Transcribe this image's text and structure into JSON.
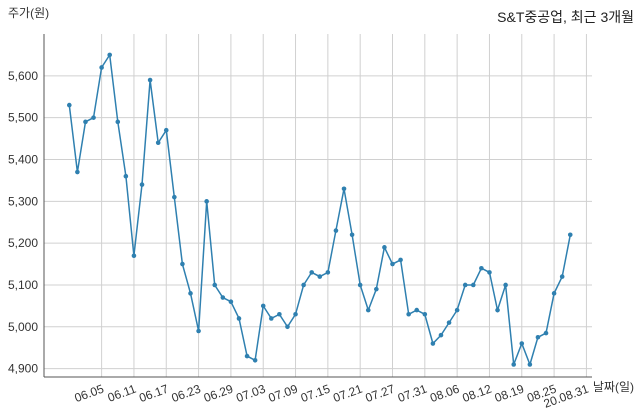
{
  "chart_data": {
    "type": "line",
    "title": "S&T중공업, 최근 3개월",
    "ylabel": "주가(원)",
    "xlabel": "날짜(일)",
    "ylim": [
      4880,
      5700
    ],
    "yticks": [
      4900,
      5000,
      5100,
      5200,
      5300,
      5400,
      5500,
      5600
    ],
    "ytick_labels": [
      "4,900",
      "5,000",
      "5,100",
      "5,200",
      "5,300",
      "5,400",
      "5,500",
      "5,600"
    ],
    "xtick_labels": [
      "06.05",
      "06.11",
      "06.17",
      "06.23",
      "06.29",
      "07.03",
      "07.09",
      "07.15",
      "07.21",
      "07.27",
      "07.31",
      "08.06",
      "08.12",
      "08.19",
      "08.25",
      "20.08.31"
    ],
    "xtick_index": [
      4,
      8,
      12,
      16,
      20,
      24,
      28,
      32,
      36,
      40,
      44,
      48,
      52,
      56,
      60,
      64
    ],
    "grid": true,
    "color": "#2f80b0",
    "values": [
      5530,
      5370,
      5490,
      5500,
      5620,
      5650,
      5490,
      5360,
      5170,
      5340,
      5590,
      5440,
      5470,
      5310,
      5150,
      5080,
      4990,
      5300,
      5100,
      5070,
      5060,
      5020,
      4930,
      4920,
      5050,
      5020,
      5030,
      5000,
      5030,
      5100,
      5130,
      5120,
      5130,
      5230,
      5330,
      5220,
      5100,
      5040,
      5090,
      5190,
      5150,
      5160,
      5030,
      5040,
      5030,
      4960,
      4980,
      5010,
      5040,
      5100,
      5100,
      5140,
      5130,
      5040,
      5100,
      4910,
      4960,
      4910,
      4975,
      4985,
      5080,
      5120,
      5220
    ]
  }
}
